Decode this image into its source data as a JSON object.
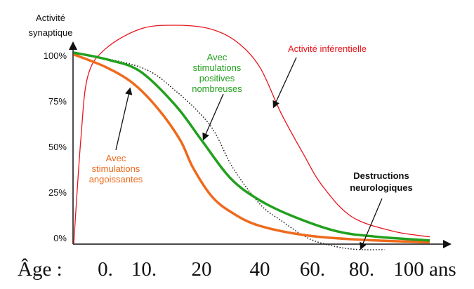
{
  "chart_data": {
    "type": "line",
    "title": "",
    "ylabel": [
      "Activité",
      "synaptique"
    ],
    "xlabel": "Âge :",
    "x_ticks": [
      {
        "age": 0,
        "label": "0."
      },
      {
        "age": 10,
        "label": "10."
      },
      {
        "age": 20,
        "label": "20"
      },
      {
        "age": 40,
        "label": "40"
      },
      {
        "age": 60,
        "label": "60."
      },
      {
        "age": 80,
        "label": "80."
      },
      {
        "age": 100,
        "label": "100 ans"
      }
    ],
    "y_ticks": [
      {
        "value": 100,
        "label": "100%"
      },
      {
        "value": 75,
        "label": "75%"
      },
      {
        "value": 50,
        "label": "50%"
      },
      {
        "value": 25,
        "label": "25%"
      },
      {
        "value": 0,
        "label": "0%"
      }
    ],
    "ylim": [
      0,
      120
    ],
    "xlim": [
      0,
      110
    ],
    "grid": false,
    "series": [
      {
        "name": "Activité inférentielle",
        "color": "#e8141c",
        "style": "thin",
        "x": [
          0,
          1,
          2,
          4.5,
          9.5,
          15.5,
          23,
          32,
          40,
          48,
          56.7,
          64,
          76,
          94,
          108
        ],
        "y": [
          0,
          57,
          92,
          107,
          118,
          120,
          118,
          111,
          97,
          72,
          49,
          32,
          15,
          7,
          4
        ]
      },
      {
        "name": "Avec stimulations positives nombreuses",
        "color": "#22a01e",
        "style": "thick",
        "x": [
          0,
          5,
          9.5,
          15.5,
          20,
          30,
          40,
          53,
          70,
          87,
          108
        ],
        "y": [
          105,
          101,
          94.6,
          76,
          57,
          36,
          24,
          15,
          7,
          4,
          2
        ]
      },
      {
        "name": "Avec stimulations angoissantes",
        "color": "#ee6a1c",
        "style": "thick",
        "x": [
          0,
          4.6,
          8.5,
          12.5,
          16.3,
          18.5,
          23.6,
          30.7,
          40,
          58.7,
          81,
          108
        ],
        "y": [
          104,
          97,
          88,
          74,
          57,
          42,
          26,
          17,
          10,
          4.6,
          2.3,
          1
        ]
      },
      {
        "name": "Destructions neurologiques",
        "color": "#111111",
        "style": "dotted",
        "x": [
          0,
          9.5,
          15.5,
          23,
          30.7,
          40,
          48,
          58.7,
          70,
          79,
          90
        ],
        "y": [
          105,
          97,
          84,
          65,
          42,
          22,
          13,
          3,
          -1.5,
          -3,
          -3
        ]
      }
    ],
    "annotations": [
      {
        "series": 0,
        "lines": [
          "Activité inférentielle"
        ],
        "color": "#e8141c"
      },
      {
        "series": 1,
        "lines": [
          "Avec",
          "stimulations",
          "positives",
          "nombreuses"
        ],
        "color": "#22a01e"
      },
      {
        "series": 2,
        "lines": [
          "Avec",
          "stimulations",
          "angoissantes"
        ],
        "color": "#ee6a1c"
      },
      {
        "series": 3,
        "lines": [
          "Destructions",
          "neurologiques"
        ],
        "color": "#111111"
      }
    ]
  }
}
